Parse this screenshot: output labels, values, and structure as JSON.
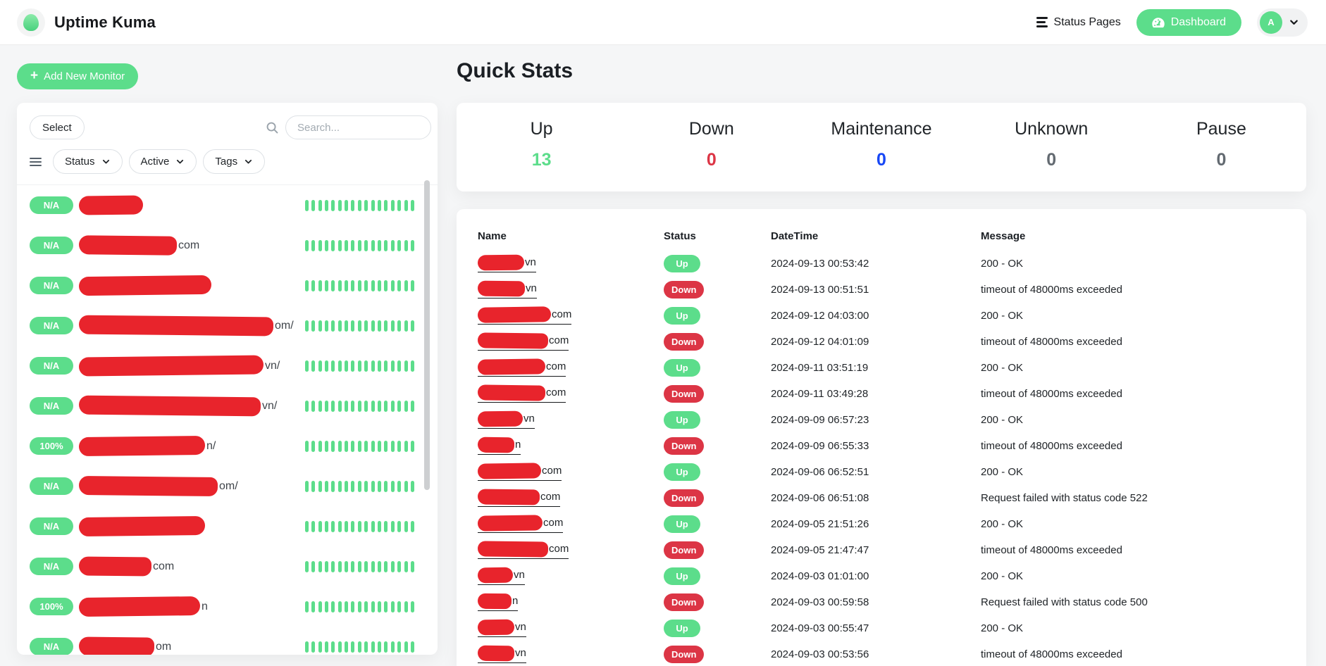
{
  "header": {
    "app_title": "Uptime Kuma",
    "status_pages_label": "Status Pages",
    "dashboard_label": "Dashboard",
    "avatar_initial": "A"
  },
  "sidebar": {
    "add_monitor_label": "Add New Monitor",
    "select_label": "Select",
    "search_placeholder": "Search...",
    "filters": [
      {
        "label": "Status"
      },
      {
        "label": "Active"
      },
      {
        "label": "Tags"
      }
    ],
    "heartbeat_count": 17,
    "monitors": [
      {
        "badge": "N/A",
        "name_suffix": "",
        "redacted_width": 91
      },
      {
        "badge": "N/A",
        "name_suffix": "com",
        "redacted_width": 139
      },
      {
        "badge": "N/A",
        "name_suffix": "",
        "redacted_width": 188
      },
      {
        "badge": "N/A",
        "name_suffix": "om/",
        "redacted_width": 276
      },
      {
        "badge": "N/A",
        "name_suffix": "vn/",
        "redacted_width": 262
      },
      {
        "badge": "N/A",
        "name_suffix": "vn/",
        "redacted_width": 258
      },
      {
        "badge": "100%",
        "name_suffix": "n/",
        "redacted_width": 179
      },
      {
        "badge": "N/A",
        "name_suffix": "om/",
        "redacted_width": 197
      },
      {
        "badge": "N/A",
        "name_suffix": "",
        "redacted_width": 179
      },
      {
        "badge": "N/A",
        "name_suffix": "com",
        "redacted_width": 103
      },
      {
        "badge": "100%",
        "name_suffix": "n",
        "redacted_width": 172
      },
      {
        "badge": "N/A",
        "name_suffix": "om",
        "redacted_width": 107
      }
    ]
  },
  "main": {
    "quick_stats_title": "Quick Stats",
    "stats": [
      {
        "label": "Up",
        "value": "13",
        "value_color": "#5cdd8b"
      },
      {
        "label": "Down",
        "value": "0",
        "value_color": "#dc3545"
      },
      {
        "label": "Maintenance",
        "value": "0",
        "value_color": "#1747f5"
      },
      {
        "label": "Unknown",
        "value": "0",
        "value_color": "#636a71"
      },
      {
        "label": "Pause",
        "value": "0",
        "value_color": "#636a71"
      }
    ],
    "table": {
      "columns": [
        "Name",
        "Status",
        "DateTime",
        "Message"
      ],
      "rows": [
        {
          "name_suffix": "vn",
          "redacted_width": 66,
          "status": "Up",
          "datetime": "2024-09-13 00:53:42",
          "message": "200 - OK"
        },
        {
          "name_suffix": "vn",
          "redacted_width": 67,
          "status": "Down",
          "datetime": "2024-09-13 00:51:51",
          "message": "timeout of 48000ms exceeded"
        },
        {
          "name_suffix": "com",
          "redacted_width": 104,
          "status": "Up",
          "datetime": "2024-09-12 04:03:00",
          "message": "200 - OK"
        },
        {
          "name_suffix": "com",
          "redacted_width": 100,
          "status": "Down",
          "datetime": "2024-09-12 04:01:09",
          "message": "timeout of 48000ms exceeded"
        },
        {
          "name_suffix": "com",
          "redacted_width": 96,
          "status": "Up",
          "datetime": "2024-09-11 03:51:19",
          "message": "200 - OK"
        },
        {
          "name_suffix": "com",
          "redacted_width": 96,
          "status": "Down",
          "datetime": "2024-09-11 03:49:28",
          "message": "timeout of 48000ms exceeded"
        },
        {
          "name_suffix": "vn",
          "redacted_width": 64,
          "status": "Up",
          "datetime": "2024-09-09 06:57:23",
          "message": "200 - OK"
        },
        {
          "name_suffix": "n",
          "redacted_width": 52,
          "status": "Down",
          "datetime": "2024-09-09 06:55:33",
          "message": "timeout of 48000ms exceeded"
        },
        {
          "name_suffix": "com",
          "redacted_width": 90,
          "status": "Up",
          "datetime": "2024-09-06 06:52:51",
          "message": "200 - OK"
        },
        {
          "name_suffix": "com",
          "redacted_width": 88,
          "status": "Down",
          "datetime": "2024-09-06 06:51:08",
          "message": "Request failed with status code 522"
        },
        {
          "name_suffix": "com",
          "redacted_width": 92,
          "status": "Up",
          "datetime": "2024-09-05 21:51:26",
          "message": "200 - OK"
        },
        {
          "name_suffix": "com",
          "redacted_width": 100,
          "status": "Down",
          "datetime": "2024-09-05 21:47:47",
          "message": "timeout of 48000ms exceeded"
        },
        {
          "name_suffix": "vn",
          "redacted_width": 50,
          "status": "Up",
          "datetime": "2024-09-03 01:01:00",
          "message": "200 - OK"
        },
        {
          "name_suffix": "n",
          "redacted_width": 48,
          "status": "Down",
          "datetime": "2024-09-03 00:59:58",
          "message": "Request failed with status code 500"
        },
        {
          "name_suffix": "vn",
          "redacted_width": 52,
          "status": "Up",
          "datetime": "2024-09-03 00:55:47",
          "message": "200 - OK"
        },
        {
          "name_suffix": "vn",
          "redacted_width": 52,
          "status": "Down",
          "datetime": "2024-09-03 00:53:56",
          "message": "timeout of 48000ms exceeded"
        }
      ]
    }
  },
  "colors": {
    "primary_green": "#5cdd8b",
    "danger_red": "#dc3545",
    "maintenance_blue": "#1747f5",
    "redaction_red": "#e8242c"
  }
}
